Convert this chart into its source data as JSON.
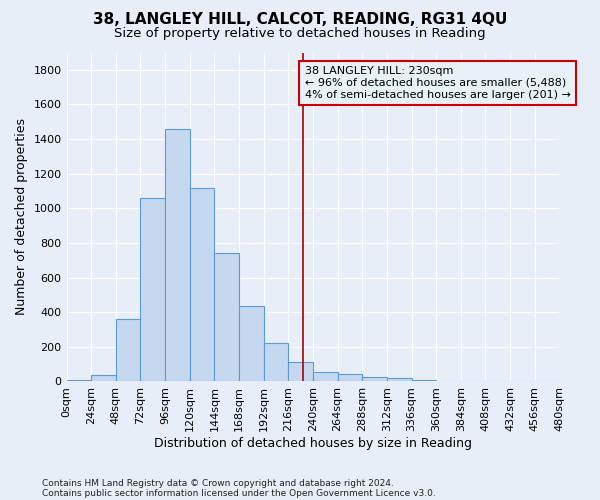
{
  "title": "38, LANGLEY HILL, CALCOT, READING, RG31 4QU",
  "subtitle": "Size of property relative to detached houses in Reading",
  "xlabel": "Distribution of detached houses by size in Reading",
  "ylabel": "Number of detached properties",
  "footnote1": "Contains HM Land Registry data © Crown copyright and database right 2024.",
  "footnote2": "Contains public sector information licensed under the Open Government Licence v3.0.",
  "bar_values": [
    10,
    35,
    360,
    1060,
    1460,
    1120,
    740,
    435,
    225,
    110,
    52,
    42,
    28,
    18,
    10,
    5,
    2,
    1,
    0,
    0
  ],
  "bin_edges": [
    0,
    24,
    48,
    72,
    96,
    120,
    144,
    168,
    192,
    216,
    240,
    264,
    288,
    312,
    336,
    360,
    384,
    408,
    432,
    456,
    480
  ],
  "bar_color": "#c5d8f0",
  "bar_edge_color": "#5b9bd5",
  "subject_size": 230,
  "subject_line_color": "#aa0000",
  "annotation_text": "38 LANGLEY HILL: 230sqm\n← 96% of detached houses are smaller (5,488)\n4% of semi-detached houses are larger (201) →",
  "annotation_box_facecolor": "#e8f0f8",
  "annotation_box_edgecolor": "#cc0000",
  "ylim": [
    0,
    1900
  ],
  "yticks": [
    0,
    200,
    400,
    600,
    800,
    1000,
    1200,
    1400,
    1600,
    1800
  ],
  "bg_color": "#e8eef8",
  "grid_color": "#ffffff",
  "title_fontsize": 11,
  "subtitle_fontsize": 9.5,
  "axis_label_fontsize": 9,
  "tick_fontsize": 8,
  "footnote_fontsize": 6.5
}
